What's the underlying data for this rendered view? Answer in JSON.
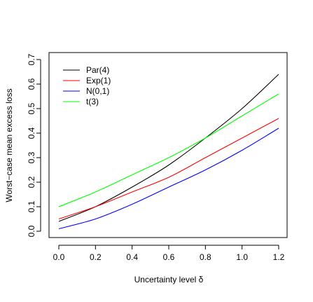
{
  "chart_data": {
    "type": "line",
    "title": "",
    "xlabel": "Uncertainty level δ",
    "ylabel": "Worst−case mean excess loss",
    "xlim": [
      0.0,
      1.2
    ],
    "ylim": [
      0.0,
      0.7
    ],
    "x_ticks": [
      "0.0",
      "0.2",
      "0.4",
      "0.6",
      "0.8",
      "1.0",
      "1.2"
    ],
    "y_ticks": [
      "0.0",
      "0.1",
      "0.2",
      "0.3",
      "0.4",
      "0.5",
      "0.6",
      "0.7"
    ],
    "grid": false,
    "legend_position": "top-left",
    "x": [
      0.0,
      0.2,
      0.4,
      0.6,
      0.8,
      1.0,
      1.2
    ],
    "series": [
      {
        "name": "Par(4)",
        "color": "#000000",
        "values": [
          0.04,
          0.1,
          0.18,
          0.27,
          0.38,
          0.5,
          0.64
        ]
      },
      {
        "name": "Exp(1)",
        "color": "#ff0000",
        "values": [
          0.05,
          0.1,
          0.16,
          0.22,
          0.3,
          0.38,
          0.46
        ]
      },
      {
        "name": "N(0,1)",
        "color": "#0000ff",
        "values": [
          0.01,
          0.05,
          0.11,
          0.18,
          0.25,
          0.33,
          0.42
        ]
      },
      {
        "name": "t(3)",
        "color": "#00ff00",
        "values": [
          0.1,
          0.16,
          0.23,
          0.3,
          0.38,
          0.47,
          0.56
        ]
      }
    ]
  }
}
